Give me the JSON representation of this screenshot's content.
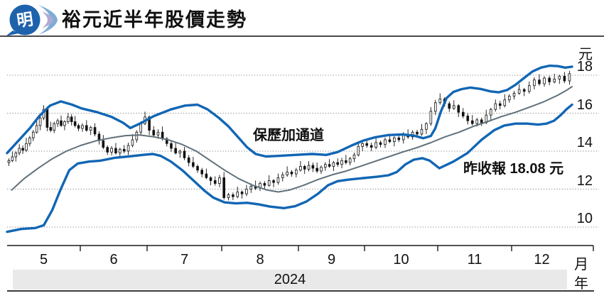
{
  "header": {
    "title": "裕元近半年股價走勢",
    "logo_char": "明"
  },
  "chart_data": {
    "type": "candlestick",
    "overlay": "bollinger_bands",
    "title": "裕元近半年股價走勢",
    "ylabel": "元",
    "xlabel_month": "月",
    "xlabel_year": "年",
    "year_label": "2024",
    "yticks": [
      18,
      16,
      14,
      12,
      10
    ],
    "ylim": [
      9.0,
      19.8
    ],
    "grid": "dotted-horizontal",
    "legend": "none",
    "bollinger_label": "保歷加通道",
    "close_annotation": "昨收報 18.08 元",
    "last_close": 18.08,
    "first_open": 13.4,
    "wick_up_pattern": [
      0.12,
      0.28,
      0.08,
      0.22,
      0.15,
      0.3,
      0.1
    ],
    "wick_down_pattern": [
      0.18,
      0.08,
      0.25,
      0.12,
      0.2,
      0.1,
      0.15
    ],
    "months": [
      {
        "label": "5",
        "closes": [
          13.5,
          13.7,
          13.9,
          14.15,
          14.05,
          14.4,
          14.7,
          15.0,
          15.35,
          15.75,
          16.2,
          15.25,
          15.1,
          15.45,
          15.6,
          15.35,
          15.55,
          15.8,
          15.55,
          15.35,
          15.2
        ]
      },
      {
        "label": "6",
        "closes": [
          15.35,
          15.1,
          15.25,
          14.9,
          14.55,
          14.2,
          13.95,
          14.15,
          13.9,
          14.1,
          14.0,
          14.3,
          14.6,
          15.0,
          15.45,
          15.8
        ]
      },
      {
        "label": "7",
        "closes": [
          15.1,
          14.85,
          15.0,
          14.65,
          14.4,
          14.15,
          13.9,
          14.0,
          13.65,
          13.4,
          13.2,
          13.0,
          12.8,
          12.6,
          12.45,
          12.3,
          12.6
        ]
      },
      {
        "label": "8",
        "closes": [
          11.55,
          11.7,
          11.6,
          11.85,
          11.75,
          12.0,
          12.15,
          12.05,
          12.3,
          12.2,
          12.45,
          12.35,
          12.6,
          12.75,
          12.9,
          12.8,
          13.0
        ]
      },
      {
        "label": "9",
        "closes": [
          13.2,
          13.05,
          13.25,
          13.1,
          12.95,
          13.15,
          13.3,
          13.2,
          13.4,
          13.3,
          13.5,
          13.4,
          13.6,
          13.8,
          14.25,
          14.4
        ]
      },
      {
        "label": "10",
        "closes": [
          14.3,
          14.2,
          14.45,
          14.35,
          14.6,
          14.5,
          14.7,
          14.6,
          14.85,
          14.75,
          15.0,
          14.9,
          15.15,
          15.45,
          16.1,
          16.55
        ]
      },
      {
        "label": "11",
        "closes": [
          16.75,
          16.5,
          16.25,
          16.4,
          16.05,
          15.85,
          15.6,
          15.45,
          15.65,
          15.5,
          15.9,
          16.2,
          16.5,
          16.4,
          16.7,
          16.9
        ]
      },
      {
        "label": "12",
        "closes": [
          17.05,
          17.25,
          17.15,
          17.45,
          17.75,
          17.55,
          17.85,
          17.65,
          17.8,
          17.95,
          17.7,
          18.08
        ]
      }
    ],
    "bands": {
      "upper": [
        [
          0,
          13.9
        ],
        [
          0.02,
          14.55
        ],
        [
          0.04,
          15.2
        ],
        [
          0.057,
          15.85
        ],
        [
          0.076,
          16.4
        ],
        [
          0.095,
          16.62
        ],
        [
          0.115,
          16.45
        ],
        [
          0.132,
          16.25
        ],
        [
          0.16,
          16.05
        ],
        [
          0.185,
          15.8
        ],
        [
          0.205,
          15.5
        ],
        [
          0.218,
          15.22
        ],
        [
          0.235,
          15.45
        ],
        [
          0.26,
          15.85
        ],
        [
          0.29,
          16.2
        ],
        [
          0.315,
          16.4
        ],
        [
          0.337,
          16.45
        ],
        [
          0.355,
          16.2
        ],
        [
          0.375,
          15.75
        ],
        [
          0.392,
          15.3
        ],
        [
          0.41,
          14.7
        ],
        [
          0.425,
          14.2
        ],
        [
          0.44,
          13.85
        ],
        [
          0.458,
          13.72
        ],
        [
          0.48,
          13.75
        ],
        [
          0.51,
          13.8
        ],
        [
          0.54,
          13.85
        ],
        [
          0.565,
          13.8
        ],
        [
          0.585,
          13.95
        ],
        [
          0.61,
          14.3
        ],
        [
          0.63,
          14.55
        ],
        [
          0.65,
          14.72
        ],
        [
          0.675,
          14.85
        ],
        [
          0.7,
          14.88
        ],
        [
          0.72,
          14.82
        ],
        [
          0.737,
          14.68
        ],
        [
          0.75,
          14.8
        ],
        [
          0.758,
          15.2
        ],
        [
          0.768,
          16.1
        ],
        [
          0.778,
          16.8
        ],
        [
          0.79,
          17.12
        ],
        [
          0.805,
          17.27
        ],
        [
          0.82,
          17.35
        ],
        [
          0.838,
          17.28
        ],
        [
          0.855,
          17.15
        ],
        [
          0.87,
          17.1
        ],
        [
          0.885,
          17.22
        ],
        [
          0.9,
          17.5
        ],
        [
          0.915,
          17.85
        ],
        [
          0.93,
          18.2
        ],
        [
          0.945,
          18.4
        ],
        [
          0.96,
          18.5
        ],
        [
          0.975,
          18.48
        ],
        [
          0.988,
          18.4
        ],
        [
          1,
          18.45
        ]
      ],
      "middle": [
        [
          0.008,
          11.95
        ],
        [
          0.03,
          12.55
        ],
        [
          0.055,
          13.1
        ],
        [
          0.08,
          13.6
        ],
        [
          0.105,
          14.0
        ],
        [
          0.13,
          14.3
        ],
        [
          0.158,
          14.55
        ],
        [
          0.184,
          14.7
        ],
        [
          0.21,
          14.82
        ],
        [
          0.235,
          14.85
        ],
        [
          0.26,
          14.75
        ],
        [
          0.285,
          14.6
        ],
        [
          0.31,
          14.35
        ],
        [
          0.335,
          14.0
        ],
        [
          0.36,
          13.5
        ],
        [
          0.385,
          13.0
        ],
        [
          0.41,
          12.55
        ],
        [
          0.435,
          12.2
        ],
        [
          0.46,
          11.95
        ],
        [
          0.48,
          11.85
        ],
        [
          0.5,
          11.95
        ],
        [
          0.525,
          12.2
        ],
        [
          0.55,
          12.5
        ],
        [
          0.575,
          12.75
        ],
        [
          0.6,
          12.95
        ],
        [
          0.625,
          13.2
        ],
        [
          0.65,
          13.45
        ],
        [
          0.675,
          13.7
        ],
        [
          0.7,
          13.95
        ],
        [
          0.725,
          14.18
        ],
        [
          0.75,
          14.45
        ],
        [
          0.775,
          14.75
        ],
        [
          0.8,
          15.0
        ],
        [
          0.825,
          15.3
        ],
        [
          0.85,
          15.55
        ],
        [
          0.875,
          15.82
        ],
        [
          0.9,
          16.05
        ],
        [
          0.925,
          16.32
        ],
        [
          0.95,
          16.6
        ],
        [
          0.975,
          16.95
        ],
        [
          0.99,
          17.2
        ],
        [
          1,
          17.4
        ]
      ],
      "lower": [
        [
          0,
          9.75
        ],
        [
          0.025,
          9.9
        ],
        [
          0.05,
          9.95
        ],
        [
          0.065,
          10.1
        ],
        [
          0.08,
          10.9
        ],
        [
          0.095,
          12.0
        ],
        [
          0.11,
          13.0
        ],
        [
          0.125,
          13.35
        ],
        [
          0.145,
          13.45
        ],
        [
          0.165,
          13.5
        ],
        [
          0.19,
          13.65
        ],
        [
          0.215,
          13.72
        ],
        [
          0.24,
          13.8
        ],
        [
          0.258,
          13.85
        ],
        [
          0.272,
          13.75
        ],
        [
          0.29,
          13.45
        ],
        [
          0.31,
          13.0
        ],
        [
          0.33,
          12.45
        ],
        [
          0.35,
          11.9
        ],
        [
          0.365,
          11.55
        ],
        [
          0.385,
          11.3
        ],
        [
          0.405,
          11.25
        ],
        [
          0.425,
          11.28
        ],
        [
          0.445,
          11.2
        ],
        [
          0.465,
          11.08
        ],
        [
          0.49,
          11.0
        ],
        [
          0.51,
          11.1
        ],
        [
          0.53,
          11.35
        ],
        [
          0.55,
          11.75
        ],
        [
          0.568,
          12.2
        ],
        [
          0.585,
          12.42
        ],
        [
          0.605,
          12.5
        ],
        [
          0.63,
          12.58
        ],
        [
          0.655,
          12.65
        ],
        [
          0.675,
          12.73
        ],
        [
          0.69,
          12.9
        ],
        [
          0.705,
          13.3
        ],
        [
          0.72,
          13.55
        ],
        [
          0.735,
          13.63
        ],
        [
          0.748,
          13.5
        ],
        [
          0.765,
          13.1
        ],
        [
          0.79,
          13.45
        ],
        [
          0.815,
          13.9
        ],
        [
          0.84,
          14.6
        ],
        [
          0.862,
          15.1
        ],
        [
          0.88,
          15.35
        ],
        [
          0.9,
          15.45
        ],
        [
          0.92,
          15.45
        ],
        [
          0.94,
          15.4
        ],
        [
          0.955,
          15.45
        ],
        [
          0.968,
          15.6
        ],
        [
          0.98,
          15.9
        ],
        [
          0.99,
          16.2
        ],
        [
          1,
          16.45
        ]
      ]
    },
    "colors": {
      "band_blue": "#1166b4",
      "mid_gray": "#60707a",
      "grid": "#8a8a8a",
      "candle": "#111111",
      "year_band_bg": "#e9e9e9",
      "axis": "#1a1a1a"
    }
  }
}
